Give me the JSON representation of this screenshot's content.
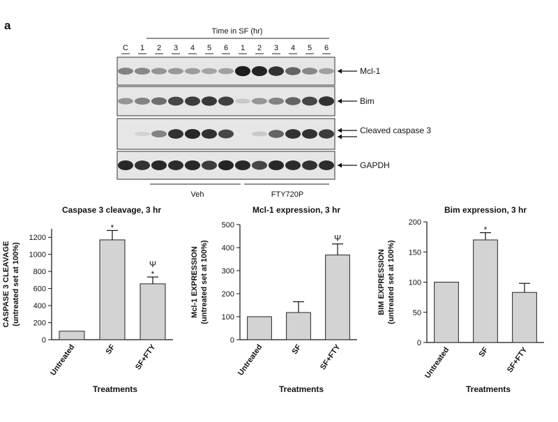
{
  "panel_label": "a",
  "blot": {
    "time_header": "Time in SF (hr)",
    "lanes": [
      "C",
      "1",
      "2",
      "3",
      "4",
      "5",
      "6",
      "1",
      "2",
      "3",
      "4",
      "5",
      "6"
    ],
    "rows": [
      {
        "label": "Mcl-1",
        "intensity": [
          0.45,
          0.42,
          0.36,
          0.34,
          0.32,
          0.28,
          0.3,
          0.95,
          0.92,
          0.85,
          0.6,
          0.42,
          0.3
        ]
      },
      {
        "label": "Bim",
        "intensity": [
          0.35,
          0.45,
          0.55,
          0.75,
          0.8,
          0.82,
          0.78,
          0.1,
          0.35,
          0.45,
          0.6,
          0.75,
          0.85
        ]
      },
      {
        "label": "Cleaved caspase 3",
        "intensity": [
          0.0,
          0.05,
          0.45,
          0.85,
          0.9,
          0.85,
          0.75,
          0.0,
          0.1,
          0.6,
          0.85,
          0.85,
          0.8
        ]
      },
      {
        "label": "GAPDH",
        "intensity": [
          0.9,
          0.85,
          0.9,
          0.88,
          0.9,
          0.8,
          0.92,
          0.9,
          0.75,
          0.9,
          0.88,
          0.85,
          0.88
        ]
      }
    ],
    "group_labels": [
      "Veh",
      "FTY720P"
    ]
  },
  "chart_data": [
    {
      "type": "bar",
      "title": "Caspase 3 cleavage, 3 hr",
      "ylabel": "CASPASE 3 CLEAVAGE",
      "ylabel2": "(untreated set at 100%)",
      "xlabel": "Treatments",
      "categories": [
        "Untreated",
        "SF",
        "SF+FTY"
      ],
      "values": [
        100,
        1170,
        655
      ],
      "errors": [
        0,
        110,
        80
      ],
      "markers": [
        "",
        "*",
        "Ψ*"
      ],
      "ylim": [
        0,
        1300
      ],
      "yticks": [
        "0",
        "200",
        "400",
        "600",
        "800",
        "1000",
        "1200"
      ]
    },
    {
      "type": "bar",
      "title": "Mcl-1 expression, 3 hr",
      "ylabel": "Mcl-1 EXPRESSION",
      "ylabel2": "(untreated set at 100%)",
      "xlabel": "Treatments",
      "categories": [
        "Untreated",
        "SF",
        "SF+FTY"
      ],
      "values": [
        100,
        118,
        368
      ],
      "errors": [
        0,
        47,
        48
      ],
      "markers": [
        "",
        "",
        "Ψ"
      ],
      "ylim": [
        0,
        500
      ],
      "yticks": [
        "0",
        "100",
        "200",
        "300",
        "400",
        "500"
      ]
    },
    {
      "type": "bar",
      "title": "Bim expression, 3 hr",
      "ylabel": "BIM EXPRESSION",
      "ylabel2": "(untreated set at 100%)",
      "xlabel": "Treatments",
      "categories": [
        "Untreated",
        "SF",
        "SF+FTY"
      ],
      "values": [
        100,
        170,
        83
      ],
      "errors": [
        0,
        12,
        15
      ],
      "markers": [
        "",
        "*",
        ""
      ],
      "ylim": [
        0,
        200
      ],
      "yticks": [
        "0",
        "50",
        "100",
        "150",
        "200"
      ]
    }
  ]
}
